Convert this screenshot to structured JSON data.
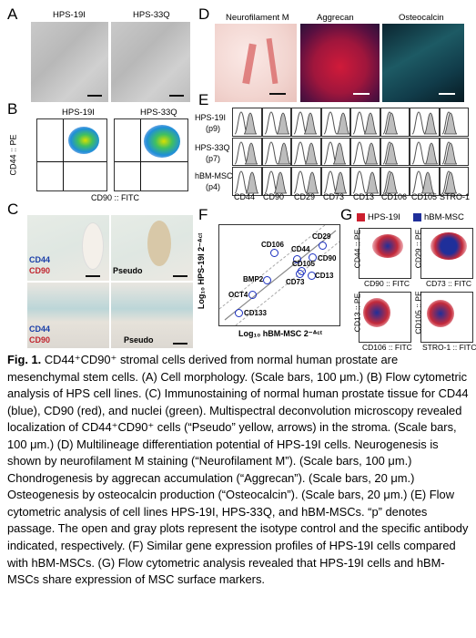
{
  "panelA": {
    "letter": "A",
    "left_title": "HPS-19I",
    "right_title": "HPS-33Q"
  },
  "panelB": {
    "letter": "B",
    "left_title": "HPS-19I",
    "right_title": "HPS-33Q",
    "ylabel": "CD44 :: PE",
    "xlabel": "CD90 :: FITC"
  },
  "panelC": {
    "letter": "C",
    "cd44": "CD44",
    "cd90": "CD90",
    "pseudo": "Pseudo"
  },
  "panelD": {
    "letter": "D",
    "t1": "Neurofilament M",
    "t2": "Aggrecan",
    "t3": "Osteocalcin"
  },
  "panelE": {
    "letter": "E",
    "rows": [
      {
        "name": "HPS-19I",
        "pass": "(p9)"
      },
      {
        "name": "HPS-33Q",
        "pass": "(p7)"
      },
      {
        "name": "hBM-MSC",
        "pass": "(p4)"
      }
    ],
    "markers": [
      "CD44",
      "CD90",
      "CD29",
      "CD73",
      "CD13",
      "CD106",
      "CD105",
      "STRO-1"
    ]
  },
  "panelF": {
    "letter": "F",
    "ylabel": "Log₁₀ HPS-19I 2⁻ᐞᶜᵗ",
    "xlabel": "Log₁₀ hBM-MSC 2⁻ᐞᶜᵗ",
    "genes": [
      "CD106",
      "CD44",
      "CD29",
      "CD90",
      "CD105",
      "CD73",
      "CD13",
      "BMP2",
      "OCT4",
      "CD133"
    ]
  },
  "panelG": {
    "letter": "G",
    "legend1": "HPS-19I",
    "legend2": "hBM-MSC",
    "plots": [
      {
        "y": "CD44 :: PE",
        "x": "CD90 :: FITC"
      },
      {
        "y": "CD29 :: PE",
        "x": "CD73 :: FITC"
      },
      {
        "y": "CD13 :: PE",
        "x": "CD106 :: FITC"
      },
      {
        "y": "CD105 :: PE",
        "x": "STRO-1 :: FITC"
      }
    ],
    "colors": {
      "hps": "#cc1f2e",
      "msc": "#1f2f9a"
    }
  },
  "caption": {
    "fig": "Fig. 1.",
    "text": "CD44⁺CD90⁺ stromal cells derived from normal human prostate are mesenchymal stem cells. (A) Cell morphology. (Scale bars, 100 μm.) (B) Flow cytometric analysis of HPS cell lines. (C) Immunostaining of normal human prostate tissue for CD44 (blue), CD90 (red), and nuclei (green). Multispectral deconvolution microscopy revealed localization of CD44⁺CD90⁺ cells (“Pseudo” yellow, arrows) in the stroma. (Scale bars, 100 μm.) (D) Multilineage differentiation potential of HPS-19I cells. Neurogenesis is shown by neurofilament M staining (“Neurofilament M”). (Scale bars, 100 μm.) Chondrogenesis by aggrecan accumulation (“Aggrecan”). (Scale bars, 20 μm.) Osteogenesis by osteocalcin production (“Osteocalcin”). (Scale bars, 20 μm.) (E) Flow cytometric analysis of cell lines HPS-19I, HPS-33Q, and hBM-MSCs. “p” denotes passage. The open and gray plots represent the isotype control and the specific antibody indicated, respectively. (F) Similar gene expression profiles of HPS-19I cells compared with hBM-MSCs. (G) Flow cytometric analysis revealed that HPS-19I cells and hBM-MSCs share expression of MSC surface markers."
  }
}
